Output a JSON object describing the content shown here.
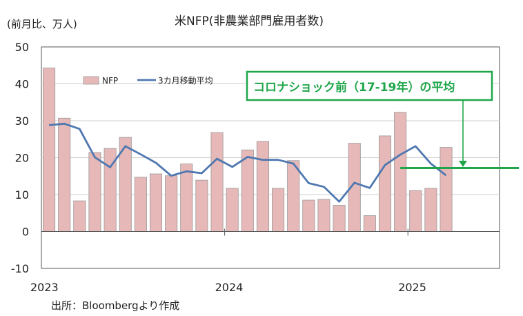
{
  "chart_data": {
    "type": "bar",
    "title": "米NFP(非農業部門雇用者数)",
    "ylabel": "(前月比、万人)",
    "source": "出所：Bloombergより作成",
    "ylim": [
      -10,
      50
    ],
    "yticks": [
      -10,
      0,
      10,
      20,
      30,
      40,
      50
    ],
    "x_year_labels": [
      {
        "label": "2023",
        "index": 0
      },
      {
        "label": "2024",
        "index": 12
      },
      {
        "label": "2025",
        "index": 24
      }
    ],
    "categories": [
      "2023-01",
      "2023-02",
      "2023-03",
      "2023-04",
      "2023-05",
      "2023-06",
      "2023-07",
      "2023-08",
      "2023-09",
      "2023-10",
      "2023-11",
      "2023-12",
      "2024-01",
      "2024-02",
      "2024-03",
      "2024-04",
      "2024-05",
      "2024-06",
      "2024-07",
      "2024-08",
      "2024-09",
      "2024-10",
      "2024-11",
      "2024-12",
      "2025-01",
      "2025-02",
      "2025-03"
    ],
    "n_slots": 30,
    "series": [
      {
        "name": "NFP",
        "type": "bar",
        "color": "#e6b8b8",
        "values": [
          44.3,
          30.7,
          8.3,
          21.4,
          22.5,
          25.5,
          14.7,
          15.6,
          15.1,
          18.3,
          13.9,
          26.8,
          11.7,
          22.1,
          24.4,
          11.7,
          19.2,
          8.5,
          8.7,
          7.1,
          23.9,
          4.3,
          25.9,
          32.3,
          11.1,
          11.7,
          22.8
        ]
      },
      {
        "name": "3カ月移動平均",
        "type": "line",
        "color": "#4f78b0",
        "values": [
          28.8,
          29.2,
          27.8,
          20.1,
          17.4,
          23.1,
          20.9,
          18.6,
          15.1,
          16.3,
          15.8,
          19.7,
          17.5,
          20.2,
          19.4,
          19.4,
          18.4,
          13.1,
          12.1,
          8.1,
          13.2,
          11.8,
          18.0,
          20.8,
          23.1,
          18.4,
          15.2
        ]
      }
    ],
    "reference": {
      "label": "コロナショック前（17-19年）の平均",
      "value": 17.2,
      "start_index": 23.5,
      "color": "#1fa64a"
    }
  }
}
